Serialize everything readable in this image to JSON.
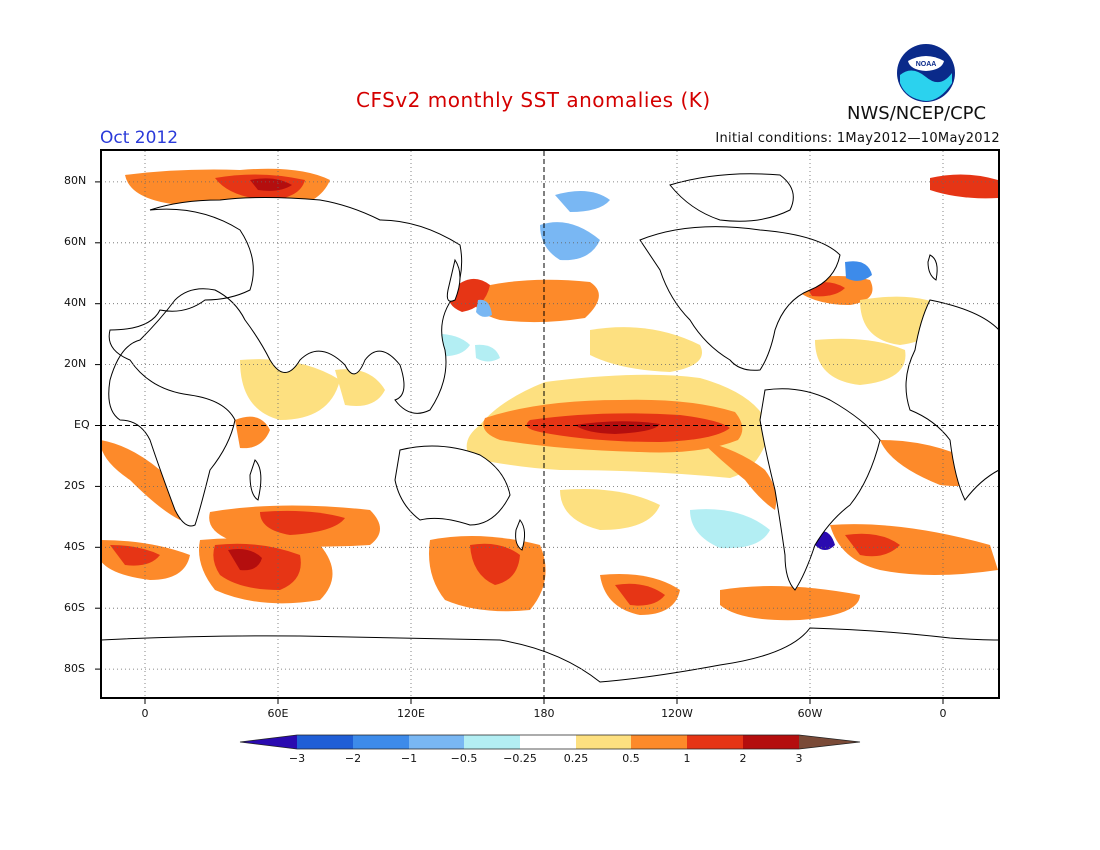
{
  "header": {
    "title": "CFSv2 monthly SST anomalies (K)",
    "period": "Oct 2012",
    "initial_conditions": "Initial conditions: 1May2012—10May2012",
    "organization": "NWS/NCEP/CPC",
    "logo_icon": "noaa-logo-icon",
    "logo_text": "NOAA"
  },
  "map": {
    "projection": "cylindrical",
    "lat_range": [
      -90,
      90
    ],
    "lon_range": [
      -20,
      380
    ],
    "lat_labels": [
      "80N",
      "60N",
      "40N",
      "20N",
      "EQ",
      "20S",
      "40S",
      "60S",
      "80S"
    ],
    "lon_labels": [
      "0",
      "60E",
      "120E",
      "180",
      "120W",
      "60W",
      "0"
    ],
    "gridlines": "dotted",
    "reference_lines": [
      "equator",
      "dateline"
    ]
  },
  "colorbar": {
    "ticks": [
      "−3",
      "−2",
      "−1",
      "−0.5",
      "−0.25",
      "0.25",
      "0.5",
      "1",
      "2",
      "3"
    ],
    "colors": [
      "#2a0ab0",
      "#1f5ed6",
      "#3d8bea",
      "#79b7f3",
      "#b3eef3",
      "#ffffff",
      "#fde080",
      "#fd8a2a",
      "#e63515",
      "#b40e0e",
      "#7a4a37"
    ]
  },
  "anomaly_regions": [
    {
      "name": "central-eastern equatorial Pacific warm tongue",
      "level": 2
    },
    {
      "name": "southern Indian Ocean band",
      "level": 2
    },
    {
      "name": "south Atlantic around 40S",
      "level": 2
    },
    {
      "name": "southeast Pacific near 60S",
      "level": 1
    },
    {
      "name": "Kuroshio extension off Japan",
      "level": 2
    },
    {
      "name": "Barents / Norwegian Sea",
      "level": 2
    },
    {
      "name": "Brazil-Malvinas confluence",
      "level": -3
    },
    {
      "name": "eastern tropical Pacific coast",
      "level": 1
    }
  ]
}
